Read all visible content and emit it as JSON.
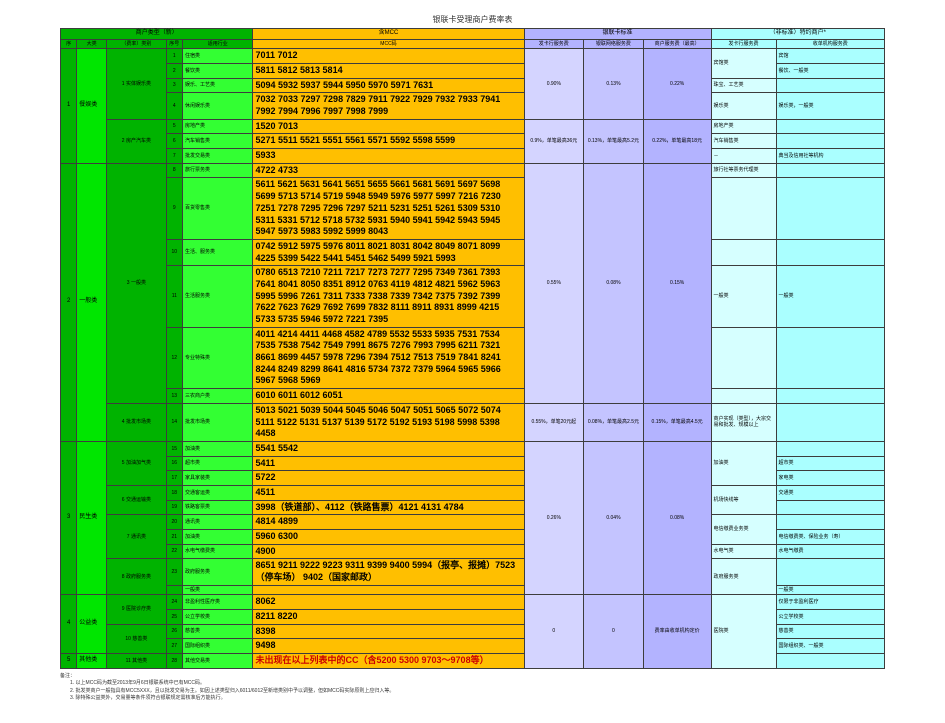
{
  "title": "银联卡受理商户费率表",
  "headers": {
    "g1": "商户类型（新）",
    "g2": "含MCC",
    "g3": "银联卡标准",
    "g4": "（非标准）特约商户*",
    "sub": {
      "a": "序",
      "b": "大类",
      "c": "（费率）类别",
      "d": "序号",
      "e": "适用行业",
      "f": "MCC码",
      "g": "发卡行服务费",
      "h": "银联网络服务费",
      "i": "商户服务费（最高）",
      "j": "发卡行服务费",
      "k": "收单机构服务费"
    }
  },
  "rows": [
    {
      "idx": "1",
      "big": "餐娱类",
      "cat": "1 实体娱乐类",
      "grp": "宾馆餐娱类",
      "sn": "1",
      "ind": "住宿类",
      "mcc": "7011 7012",
      "b1": "0.90%",
      "b2": "0.13%",
      "b3": "0.22%",
      "c1": "宾馆类",
      "c2": "宾馆"
    },
    {
      "sn": "2",
      "ind": "餐饮类",
      "mcc": "5811 5812 5813 5814",
      "c2": "餐饮、一般类"
    },
    {
      "sn": "3",
      "ind": "娱乐、工艺类",
      "mcc": "5094 5932 5937 5944 5950 5970 5971 7631",
      "c1": "珠宝、工艺类",
      "c2": ""
    },
    {
      "sn": "4",
      "ind": "休闲娱乐类",
      "mcc": "7032 7033 7297 7298 7829 7911 7922 7929 7932 7933 7941 7992 7994 7996 7997 7998 7999",
      "c1": "娱乐类",
      "c2": "娱乐类，一般类"
    },
    {
      "cat": "2 房产汽车类",
      "sn": "5",
      "ind": "房地产类",
      "mcc": "1520 7013",
      "b1": "0.9%，单笔最高36元",
      "b2": "0.13%，单笔最高5.2元",
      "b3": "0.22%，单笔最高18元",
      "c1": "房地产类",
      "c2": ""
    },
    {
      "sn": "6",
      "ind": "汽车销售类",
      "mcc": "5271 5511 5521 5551 5561 5571 5592 5598 5599",
      "c1": "汽车销售类",
      "c2": ""
    },
    {
      "sn": "7",
      "ind": "批发交易类",
      "mcc": "5933",
      "c1": "－",
      "c2": "典当及信用社等机构"
    },
    {
      "idx": "2",
      "big": "一般类",
      "cat": "3 一般类",
      "sn": "8",
      "ind": "旅行票务类",
      "mcc": "4722 4733",
      "b1": "0.55%",
      "b2": "0.08%",
      "b3": "0.15%",
      "c1": "旅行社等票务代理类",
      "c2": ""
    },
    {
      "sn": "9",
      "ind": "百货零售类",
      "mcc": "5611 5621 5631 5641 5651 5655 5661 5681 5691 5697 5698 5699 5713 5714 5719 5948 5949 5976 5977 5997 7216 7230 7251 7278 7295 7296 7297 5211 5231 5251 5261 5309 5310 5311 5331 5712 5718 5732 5931 5940 5941 5942 5943 5945 5947 5973 5983 5992 5999 8043",
      "c1": "",
      "c2": ""
    },
    {
      "sn": "10",
      "ind": "生活、服务类",
      "mcc": "0742 5912 5975 5976 8011 8021 8031 8042 8049 8071 8099 4225 5399 5422 5441 5451 5462 5499 5921 5993",
      "c1": "",
      "c2": ""
    },
    {
      "sn": "11",
      "ind": "生活服务类",
      "mcc": "0780 6513 7210 7211 7217 7273 7277 7295 7349 7361 7393 7641 8041 8050 8351 8912 0763 4119 4812 4821 5962 5963 5995 5996 7261 7311 7333 7338 7339 7342 7375 7392 7399 7622 7623 7629 7692 7699 7832 8111 8911 8931 8999 4215 5733 5735 5946 5972 7221 7395",
      "c1": "一般类",
      "c2": "一般类"
    },
    {
      "sn": "12",
      "ind": "专业特殊类",
      "mcc": "4011 4214 4411 4468 4582 4789 5532 5533 5935 7531 7534 7535 7538 7542 7549 7991 8675 7276 7993 7995 6211 7321 8661 8699 4457 5978 7296 7394 7512 7513 7519 7841 8241 8244 8249 8299 8641 4816 5734 7372 7379 5964 5965 5966 5967 5968 5969",
      "c1": "",
      "c2": ""
    },
    {
      "sn": "13",
      "ind": "三农商户类",
      "mcc": "6010 6011 6012 6051",
      "c1": "",
      "c2": ""
    },
    {
      "cat": "4 批发市场类",
      "sn": "14",
      "ind": "批发市场类",
      "mcc": "5013 5021 5039 5044 5045 5046 5047 5051 5065 5072 5074 5111 5122 5131 5137 5139 5172 5192 5193 5198  5998 5398 4458",
      "b1": "0.55%，单笔20元起",
      "b2": "0.08%，单笔最高2.5元",
      "b3": "0.15%，单笔最高4.5元",
      "c1": "商户实现（类型），大宗交易和批发、规模以上"
    },
    {
      "idx": "3",
      "big": "民生类",
      "cat": "5 加油加气类",
      "sn": "15",
      "ind": "加油类",
      "mcc": "5541 5542",
      "b1": "0.26%",
      "b2": "0.04%",
      "b3": "0.08%",
      "c1": "加油类",
      "c2": ""
    },
    {
      "sn": "16",
      "ind": "超市类",
      "mcc": "5411",
      "c2": "超市类"
    },
    {
      "sn": "17",
      "ind": "家具家装类",
      "mcc": "5722",
      "c2": "家电类"
    },
    {
      "cat": "6 交通运输类",
      "sn": "18",
      "ind": "交通客运类",
      "mcc": "4511",
      "c1": "机场快线等",
      "c2": "交通类"
    },
    {
      "sn": "19",
      "ind": "铁路客票类",
      "mcc": "3998（铁道部）、4112（铁路售票）4121 4131 4784",
      "c2": ""
    },
    {
      "cat": "7 通讯类",
      "sn": "20",
      "ind": "通讯类",
      "mcc": "4814 4899",
      "c1": "电信缴费业务类",
      "c2": ""
    },
    {
      "sn": "21",
      "ind": "加油类",
      "mcc": "5960 6300",
      "c2": "电信缴费类、保险业务（寿）"
    },
    {
      "sn": "22",
      "ind": "水电气缴费类",
      "mcc": "4900",
      "c1": "水电气类",
      "c2": "水电气缴费"
    },
    {
      "cat": "8 政府服务类",
      "sn": "23",
      "ind": "政府服务类",
      "mcc": "8651 9211 9222 9223 9311 9399 9400 5994（报亭、报摊）7523（停车场） 9402（国家邮政）",
      "c1": "政府服务类",
      "c2": ""
    },
    {
      "sn": "",
      "ind": "一般类",
      "mcc": "",
      "c2": "一般类"
    },
    {
      "idx": "4",
      "big": "公益类",
      "cat": "9 医院诊疗类",
      "sn": "24",
      "ind": "非盈利性医疗类",
      "mcc": "8062",
      "b1": "0",
      "b2": "0",
      "b3": "费率由收单机构定价",
      "c1": "医院类",
      "c2": "仅限于非盈利医疗"
    },
    {
      "sn": "25",
      "ind": "公立学校类",
      "mcc": "8211 8220",
      "c2": "公立学校类"
    },
    {
      "cat": "10 慈善类",
      "sn": "26",
      "ind": "慈善类",
      "mcc": "8398",
      "c2": "慈善类"
    },
    {
      "sn": "27",
      "ind": "国际组织类",
      "mcc": "9498",
      "c2": "国际组织类、一般类"
    },
    {
      "idx": "5",
      "big": "其他类",
      "cat": "11 其他类",
      "sn": "28",
      "ind": "其他交易类",
      "mcc": "未出现在以上列表中的CC（含5200 5300 9703～9708等）",
      "red": true
    }
  ],
  "notes": {
    "p1": "备注：",
    "n1": "1. 以上MCC码为截至2013年9月6日银联系统中已有MCC码。",
    "n2": "2. 批发类商户一般指具有MCC5XXX，且以批发交易为主。如因上述类型归入6011/6012至新增类别中予以调整，但如MCC码实际原则上应归入等。",
    "n3": "3. 除特殊公益类外，交易量等条件须符合银联规定需核准后方能执行。"
  }
}
